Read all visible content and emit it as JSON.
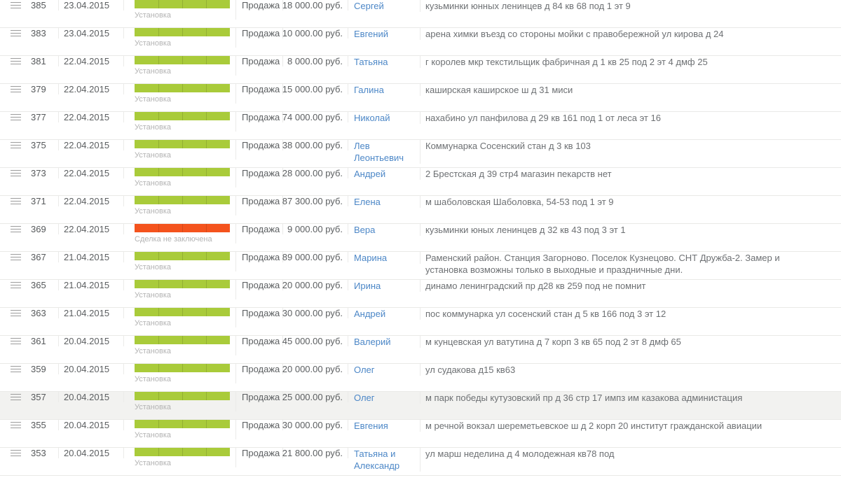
{
  "colors": {
    "green": "#a9cb3a",
    "red": "#f4531d",
    "link_blue": "#4c87c7",
    "label_gray": "#b3b3b3",
    "highlight_bg": "#f2f2f0"
  },
  "statuses": {
    "installation": "Установка",
    "not_closed": "Сделка не заключена"
  },
  "table": {
    "rows": [
      {
        "id": "385",
        "date": "23.04.2015",
        "status_label": "Установка",
        "status_color": "green",
        "type": "Продажа",
        "amount": "18 000.00 руб.",
        "name": "Сергей",
        "address": "кузьминки юнных ленинцев д 84 кв 68 под 1 эт 9",
        "highlighted": false
      },
      {
        "id": "383",
        "date": "23.04.2015",
        "status_label": "Установка",
        "status_color": "green",
        "type": "Продажа",
        "amount": "10 000.00 руб.",
        "name": "Евгений",
        "address": "арена химки въезд со стороны мойки с правобережной ул кирова д 24",
        "highlighted": false
      },
      {
        "id": "381",
        "date": "22.04.2015",
        "status_label": "Установка",
        "status_color": "green",
        "type": "Продажа",
        "amount": "8 000.00 руб.",
        "name": "Татьяна",
        "address": "г королев мкр текстильщик фабричная д 1 кв 25 под 2 эт 4 дмф 25",
        "highlighted": false
      },
      {
        "id": "379",
        "date": "22.04.2015",
        "status_label": "Установка",
        "status_color": "green",
        "type": "Продажа",
        "amount": "15 000.00 руб.",
        "name": "Галина",
        "address": "каширская каширское ш д 31 миси",
        "highlighted": false
      },
      {
        "id": "377",
        "date": "22.04.2015",
        "status_label": "Установка",
        "status_color": "green",
        "type": "Продажа",
        "amount": "74 000.00 руб.",
        "name": "Николай",
        "address": "нахабино ул панфилова д 29 кв 161 под 1 от леса эт 16",
        "highlighted": false
      },
      {
        "id": "375",
        "date": "22.04.2015",
        "status_label": "Установка",
        "status_color": "green",
        "type": "Продажа",
        "amount": "38 000.00 руб.",
        "name": "Лев Леонтьевич",
        "address": "Коммунарка Сосенский стан д 3 кв 103",
        "highlighted": false
      },
      {
        "id": "373",
        "date": "22.04.2015",
        "status_label": "Установка",
        "status_color": "green",
        "type": "Продажа",
        "amount": "28 000.00 руб.",
        "name": "Андрей",
        "address": "2 Брестская д 39 стр4 магазин пекарств нет",
        "highlighted": false
      },
      {
        "id": "371",
        "date": "22.04.2015",
        "status_label": "Установка",
        "status_color": "green",
        "type": "Продажа",
        "amount": "87 300.00 руб.",
        "name": "Елена",
        "address": "м шаболовская Шаболовка, 54-53 под 1 эт 9",
        "highlighted": false
      },
      {
        "id": "369",
        "date": "22.04.2015",
        "status_label": "Сделка не заключена",
        "status_color": "red",
        "type": "Продажа",
        "amount": "9 000.00 руб.",
        "name": "Вера",
        "address": "кузьминки юных ленинцев д 32 кв 43 под 3 эт 1",
        "highlighted": false
      },
      {
        "id": "367",
        "date": "21.04.2015",
        "status_label": "Установка",
        "status_color": "green",
        "type": "Продажа",
        "amount": "89 000.00 руб.",
        "name": "Марина",
        "address": "Раменский район. Станция Загорново. Поселок Кузнецово. СНТ Дружба-2. Замер и установка возможны только в выходные и праздничные дни.",
        "highlighted": false
      },
      {
        "id": "365",
        "date": "21.04.2015",
        "status_label": "Установка",
        "status_color": "green",
        "type": "Продажа",
        "amount": "20 000.00 руб.",
        "name": "Ирина",
        "address": "динамо ленинградский пр д28 кв 259 под не помнит",
        "highlighted": false
      },
      {
        "id": "363",
        "date": "21.04.2015",
        "status_label": "Установка",
        "status_color": "green",
        "type": "Продажа",
        "amount": "30 000.00 руб.",
        "name": "Андрей",
        "address": "пос коммунарка ул сосенский стан д 5 кв 166 под 3 эт 12",
        "highlighted": false
      },
      {
        "id": "361",
        "date": "20.04.2015",
        "status_label": "Установка",
        "status_color": "green",
        "type": "Продажа",
        "amount": "45 000.00 руб.",
        "name": "Валерий",
        "address": "м кунцевская ул ватутина д 7 корп 3 кв 65 под 2 эт 8 дмф 65",
        "highlighted": false
      },
      {
        "id": "359",
        "date": "20.04.2015",
        "status_label": "Установка",
        "status_color": "green",
        "type": "Продажа",
        "amount": "20 000.00 руб.",
        "name": "Олег",
        "address": "ул судакова д15 кв63",
        "highlighted": false
      },
      {
        "id": "357",
        "date": "20.04.2015",
        "status_label": "Установка",
        "status_color": "green",
        "type": "Продажа",
        "amount": "25 000.00 руб.",
        "name": "Олег",
        "address": "м парк победы кутузовский пр д 36 стр 17 импз им казакова администация",
        "highlighted": true
      },
      {
        "id": "355",
        "date": "20.04.2015",
        "status_label": "Установка",
        "status_color": "green",
        "type": "Продажа",
        "amount": "30 000.00 руб.",
        "name": "Евгения",
        "address": "м речной вокзал шереметьевское ш д 2 корп 20 институт гражданской авиации",
        "highlighted": false
      },
      {
        "id": "353",
        "date": "20.04.2015",
        "status_label": "Установка",
        "status_color": "green",
        "type": "Продажа",
        "amount": "21 800.00 руб.",
        "name": "Татьяна и Александр",
        "address": "ул марш неделина д 4 молодежная кв78 под",
        "highlighted": false
      }
    ]
  }
}
